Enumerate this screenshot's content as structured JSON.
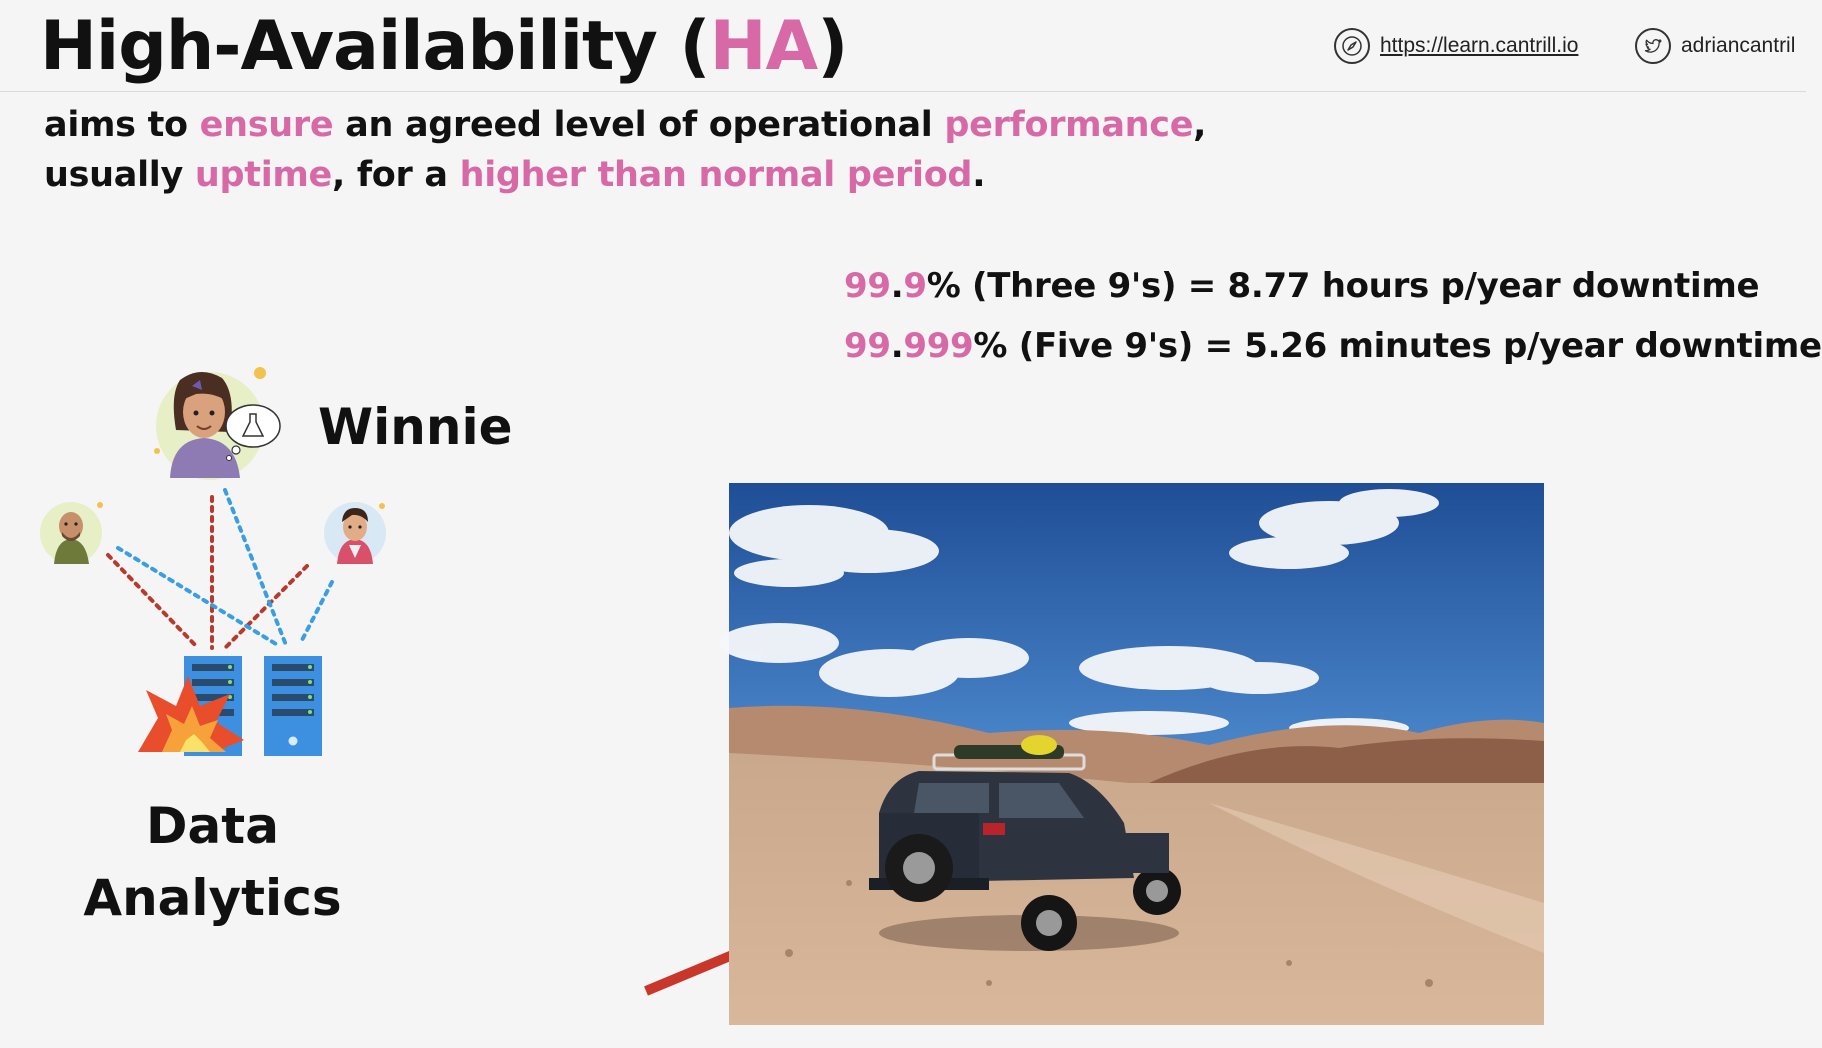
{
  "header": {
    "title_prefix": "High-Availability (",
    "title_highlight": "HA",
    "title_suffix": ")",
    "website": "https://learn.cantrill.io",
    "twitter": "adriancantril"
  },
  "definition": {
    "line1": [
      {
        "text": "aims to ",
        "highlight": false
      },
      {
        "text": "ensure",
        "highlight": true
      },
      {
        "text": " an agreed level of operational ",
        "highlight": false
      },
      {
        "text": "performance",
        "highlight": true
      },
      {
        "text": ",",
        "highlight": false
      }
    ],
    "line2": [
      {
        "text": "usually ",
        "highlight": false
      },
      {
        "text": "uptime",
        "highlight": true
      },
      {
        "text": ", for a ",
        "highlight": false
      },
      {
        "text": "higher than normal period",
        "highlight": true
      },
      {
        "text": ".",
        "highlight": false
      }
    ]
  },
  "availability": [
    {
      "pink_a": "99",
      "dot": ".",
      "pink_b": "9",
      "rest": "% (Three 9's) = 8.77 hours p/year downtime"
    },
    {
      "pink_a": "99",
      "dot": ".",
      "pink_b": "999",
      "rest": "% (Five 9's) = 5.26 minutes p/year downtime"
    }
  ],
  "diagram": {
    "user_name": "Winnie",
    "service_line1": "Data",
    "service_line2": "Analytics"
  },
  "icons": {
    "website": "compass-icon",
    "twitter": "twitter-bird-icon"
  },
  "colors": {
    "accent": "#d76aa6",
    "red_dotted": "#b83a2c",
    "blue_dotted": "#3a9ee0",
    "server_blue": "#3d8fe0",
    "arrow_red": "#c8372a"
  }
}
